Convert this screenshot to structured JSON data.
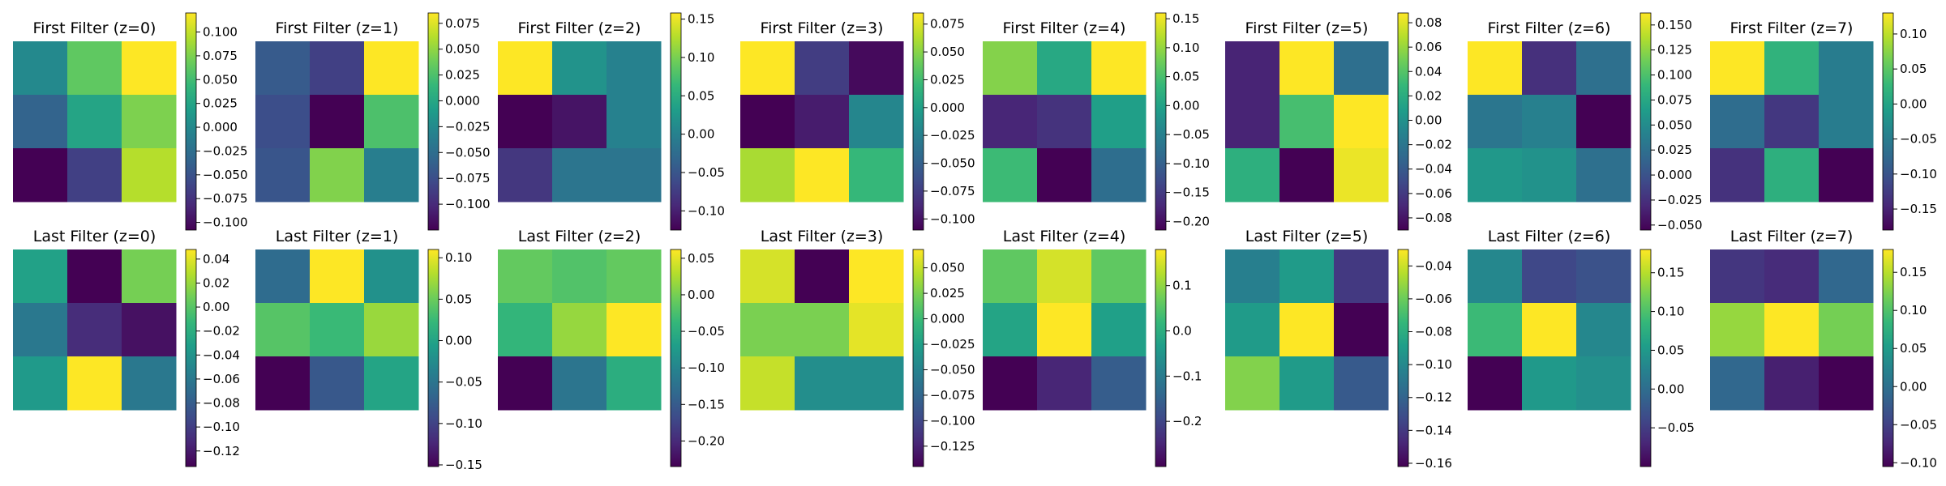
{
  "chart_data": [
    {
      "type": "heatmap",
      "title": "First Filter (z=0)",
      "cmap": "viridis",
      "colorbar": {
        "range": [
          -0.108,
          0.12
        ],
        "ticks": [
          0.1,
          0.075,
          0.05,
          0.025,
          0.0,
          -0.025,
          -0.05,
          -0.075,
          -0.1
        ],
        "tick_labels": [
          "0.100",
          "0.075",
          "0.050",
          "0.025",
          "0.000",
          "−0.025",
          "−0.050",
          "−0.075",
          "−0.100"
        ]
      },
      "values": [
        [
          0.0,
          0.063,
          0.12
        ],
        [
          -0.035,
          0.025,
          0.075
        ],
        [
          -0.108,
          -0.065,
          0.095
        ]
      ]
    },
    {
      "type": "heatmap",
      "title": "First Filter (z=1)",
      "cmap": "viridis",
      "colorbar": {
        "range": [
          -0.125,
          0.085
        ],
        "ticks": [
          0.075,
          0.05,
          0.025,
          0.0,
          -0.025,
          -0.05,
          -0.075,
          -0.1
        ],
        "tick_labels": [
          "0.075",
          "0.050",
          "0.025",
          "0.000",
          "−0.025",
          "−0.050",
          "−0.075",
          "−0.100"
        ]
      },
      "values": [
        [
          -0.065,
          -0.085,
          0.085
        ],
        [
          -0.075,
          -0.125,
          0.025
        ],
        [
          -0.07,
          0.045,
          -0.035
        ]
      ]
    },
    {
      "type": "heatmap",
      "title": "First Filter (z=2)",
      "cmap": "viridis",
      "colorbar": {
        "range": [
          -0.125,
          0.158
        ],
        "ticks": [
          0.15,
          0.1,
          0.05,
          0.0,
          -0.05,
          -0.1
        ],
        "tick_labels": [
          "0.15",
          "0.10",
          "0.05",
          "0.00",
          "−0.05",
          "−0.10"
        ]
      },
      "values": [
        [
          0.158,
          0.02,
          0.0
        ],
        [
          -0.125,
          -0.11,
          0.0
        ],
        [
          -0.08,
          -0.015,
          -0.015
        ]
      ]
    },
    {
      "type": "heatmap",
      "title": "First Filter (z=3)",
      "cmap": "viridis",
      "colorbar": {
        "range": [
          -0.11,
          0.085
        ],
        "ticks": [
          0.075,
          0.05,
          0.025,
          0.0,
          -0.025,
          -0.05,
          -0.075,
          -0.1
        ],
        "tick_labels": [
          "0.075",
          "0.050",
          "0.025",
          "0.000",
          "−0.025",
          "−0.050",
          "−0.075",
          "−0.100"
        ]
      },
      "values": [
        [
          0.085,
          -0.075,
          -0.105
        ],
        [
          -0.11,
          -0.095,
          -0.02
        ],
        [
          0.06,
          0.085,
          0.02
        ]
      ]
    },
    {
      "type": "heatmap",
      "title": "First Filter (z=4)",
      "cmap": "viridis",
      "colorbar": {
        "range": [
          -0.215,
          0.16
        ],
        "ticks": [
          0.15,
          0.1,
          0.05,
          0.0,
          -0.05,
          -0.1,
          -0.15,
          -0.2
        ],
        "tick_labels": [
          "0.15",
          "0.10",
          "0.05",
          "0.00",
          "−0.05",
          "−0.10",
          "−0.15",
          "−0.20"
        ]
      },
      "values": [
        [
          0.09,
          0.01,
          0.16
        ],
        [
          -0.175,
          -0.16,
          -0.005
        ],
        [
          0.04,
          -0.215,
          -0.08
        ]
      ]
    },
    {
      "type": "heatmap",
      "title": "First Filter (z=5)",
      "cmap": "viridis",
      "colorbar": {
        "range": [
          -0.09,
          0.088
        ],
        "ticks": [
          0.08,
          0.06,
          0.04,
          0.02,
          0.0,
          -0.02,
          -0.04,
          -0.06,
          -0.08
        ],
        "tick_labels": [
          "0.08",
          "0.06",
          "0.04",
          "0.02",
          "0.00",
          "−0.02",
          "−0.04",
          "−0.06",
          "−0.08"
        ]
      },
      "values": [
        [
          -0.072,
          0.088,
          -0.025
        ],
        [
          -0.072,
          0.035,
          0.088
        ],
        [
          0.022,
          -0.09,
          0.083
        ]
      ]
    },
    {
      "type": "heatmap",
      "title": "First Filter (z=6)",
      "cmap": "viridis",
      "colorbar": {
        "range": [
          -0.055,
          0.162
        ],
        "ticks": [
          0.15,
          0.125,
          0.1,
          0.075,
          0.05,
          0.025,
          0.0,
          -0.025,
          -0.05
        ],
        "tick_labels": [
          "0.150",
          "0.125",
          "0.100",
          "0.075",
          "0.050",
          "0.025",
          "0.000",
          "−0.025",
          "−0.050"
        ]
      },
      "values": [
        [
          0.162,
          -0.025,
          0.025
        ],
        [
          0.03,
          0.04,
          -0.055
        ],
        [
          0.06,
          0.055,
          0.025
        ]
      ]
    },
    {
      "type": "heatmap",
      "title": "First Filter (z=7)",
      "cmap": "viridis",
      "colorbar": {
        "range": [
          -0.18,
          0.13
        ],
        "ticks": [
          0.1,
          0.05,
          0.0,
          -0.05,
          -0.1,
          -0.15
        ],
        "tick_labels": [
          "0.10",
          "0.05",
          "0.00",
          "−0.05",
          "−0.10",
          "−0.15"
        ]
      },
      "values": [
        [
          0.13,
          0.02,
          -0.05
        ],
        [
          -0.07,
          -0.13,
          -0.05
        ],
        [
          -0.135,
          0.015,
          -0.18
        ]
      ]
    },
    {
      "type": "heatmap",
      "title": "Last Filter (z=0)",
      "cmap": "viridis",
      "colorbar": {
        "range": [
          -0.133,
          0.048
        ],
        "ticks": [
          0.04,
          0.02,
          0.0,
          -0.02,
          -0.04,
          -0.06,
          -0.08,
          -0.1,
          -0.12
        ],
        "tick_labels": [
          "0.04",
          "0.02",
          "0.00",
          "−0.02",
          "−0.04",
          "−0.06",
          "−0.08",
          "−0.10",
          "−0.12"
        ]
      },
      "values": [
        [
          -0.03,
          -0.133,
          0.01
        ],
        [
          -0.06,
          -0.11,
          -0.125
        ],
        [
          -0.035,
          0.048,
          -0.06
        ]
      ]
    },
    {
      "type": "heatmap",
      "title": "Last Filter (z=1)",
      "cmap": "viridis",
      "colorbar": {
        "range": [
          -0.152,
          0.11
        ],
        "ticks": [
          0.1,
          0.05,
          0.0,
          -0.05,
          -0.1,
          -0.15
        ],
        "tick_labels": [
          "0.10",
          "0.05",
          "0.00",
          "−0.05",
          "−0.10",
          "−0.15"
        ]
      },
      "values": [
        [
          -0.06,
          0.11,
          -0.02
        ],
        [
          0.04,
          0.025,
          0.07
        ],
        [
          -0.152,
          -0.08,
          0.0
        ]
      ]
    },
    {
      "type": "heatmap",
      "title": "Last Filter (z=2)",
      "cmap": "viridis",
      "colorbar": {
        "range": [
          -0.235,
          0.062
        ],
        "ticks": [
          0.05,
          0.0,
          -0.05,
          -0.1,
          -0.15,
          -0.2
        ],
        "tick_labels": [
          "0.05",
          "0.00",
          "−0.05",
          "−0.10",
          "−0.15",
          "−0.20"
        ]
      },
      "values": [
        [
          -0.01,
          -0.02,
          -0.01
        ],
        [
          -0.04,
          0.015,
          0.062
        ],
        [
          -0.235,
          -0.12,
          -0.05
        ]
      ]
    },
    {
      "type": "heatmap",
      "title": "Last Filter (z=3)",
      "cmap": "viridis",
      "colorbar": {
        "range": [
          -0.145,
          0.068
        ],
        "ticks": [
          0.05,
          0.025,
          0.0,
          -0.025,
          -0.05,
          -0.075,
          -0.1,
          -0.125
        ],
        "tick_labels": [
          "0.050",
          "0.025",
          "0.000",
          "−0.025",
          "−0.050",
          "−0.075",
          "−0.100",
          "−0.125"
        ]
      },
      "values": [
        [
          0.055,
          -0.145,
          0.068
        ],
        [
          0.025,
          0.025,
          0.06
        ],
        [
          0.05,
          -0.04,
          -0.04
        ]
      ]
    },
    {
      "type": "heatmap",
      "title": "Last Filter (z=4)",
      "cmap": "viridis",
      "colorbar": {
        "range": [
          -0.3,
          0.18
        ],
        "ticks": [
          0.1,
          0.0,
          -0.1,
          -0.2
        ],
        "tick_labels": [
          "0.1",
          "0.0",
          "−0.1",
          "−0.2"
        ]
      },
      "values": [
        [
          0.06,
          0.15,
          0.06
        ],
        [
          -0.02,
          0.18,
          -0.03
        ],
        [
          -0.3,
          -0.25,
          -0.16
        ]
      ]
    },
    {
      "type": "heatmap",
      "title": "Last Filter (z=5)",
      "cmap": "viridis",
      "colorbar": {
        "range": [
          -0.162,
          -0.03
        ],
        "ticks": [
          -0.04,
          -0.06,
          -0.08,
          -0.1,
          -0.12,
          -0.14,
          -0.16
        ],
        "tick_labels": [
          "−0.04",
          "−0.06",
          "−0.08",
          "−0.10",
          "−0.12",
          "−0.14",
          "−0.16"
        ]
      },
      "values": [
        [
          -0.105,
          -0.09,
          -0.14
        ],
        [
          -0.09,
          -0.03,
          -0.162
        ],
        [
          -0.055,
          -0.09,
          -0.125
        ]
      ]
    },
    {
      "type": "heatmap",
      "title": "Last Filter (z=6)",
      "cmap": "viridis",
      "colorbar": {
        "range": [
          -0.1,
          0.18
        ],
        "ticks": [
          0.15,
          0.1,
          0.05,
          0.0,
          -0.05
        ],
        "tick_labels": [
          "0.15",
          "0.10",
          "0.05",
          "0.00",
          "−0.05"
        ]
      },
      "values": [
        [
          0.03,
          -0.04,
          -0.03
        ],
        [
          0.09,
          0.18,
          0.03
        ],
        [
          -0.1,
          0.05,
          0.04
        ]
      ]
    },
    {
      "type": "heatmap",
      "title": "Last Filter (z=7)",
      "cmap": "viridis",
      "colorbar": {
        "range": [
          -0.105,
          0.18
        ],
        "ticks": [
          0.15,
          0.1,
          0.05,
          0.0,
          -0.05,
          -0.1
        ],
        "tick_labels": [
          "0.15",
          "0.10",
          "0.05",
          "0.00",
          "−0.05",
          "−0.10"
        ]
      },
      "values": [
        [
          -0.06,
          -0.07,
          -0.01
        ],
        [
          0.135,
          0.18,
          0.12
        ],
        [
          -0.01,
          -0.08,
          -0.105
        ]
      ]
    }
  ]
}
